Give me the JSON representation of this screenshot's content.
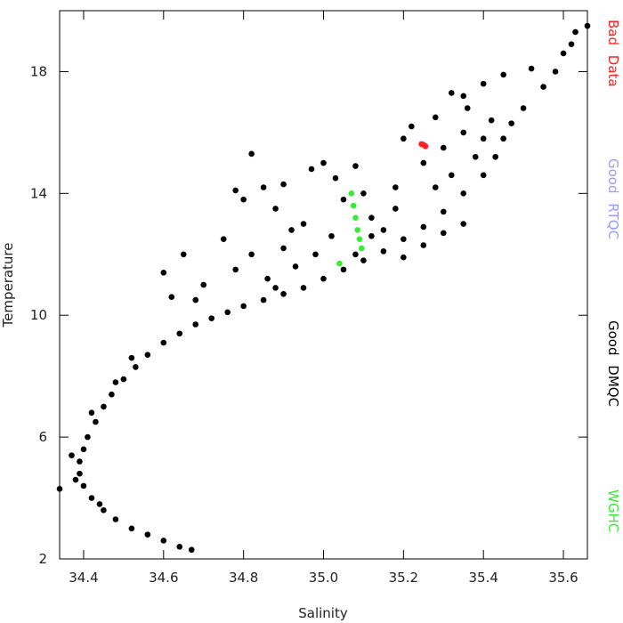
{
  "chart_data": {
    "type": "scatter",
    "x_label": "Salinity",
    "y_label": "Temperature",
    "xlim": [
      34.34,
      35.66
    ],
    "ylim": [
      2,
      20
    ],
    "xticks": [
      34.4,
      34.6,
      34.8,
      {
        "value": 35.0,
        "label": "35.0"
      },
      35.2,
      35.4,
      35.6
    ],
    "yticks": [
      2,
      6,
      10,
      14,
      18
    ],
    "series": [
      {
        "name": "Bad Data",
        "color": "#ff2020",
        "x": [
          35.25,
          35.255,
          35.245
        ],
        "values": [
          15.6,
          15.55,
          15.62
        ]
      },
      {
        "name": "Good RTQC",
        "color": "#9a9aff",
        "x": [],
        "values": []
      },
      {
        "name": "Good DMQC",
        "color": "#000000",
        "x": [
          34.67,
          34.64,
          34.6,
          34.56,
          34.52,
          34.48,
          34.45,
          34.42,
          34.4,
          34.39,
          34.39,
          34.4,
          34.41,
          34.43,
          34.45,
          34.47,
          34.5,
          34.53,
          34.56,
          34.6,
          34.64,
          34.68,
          34.72,
          34.76,
          34.8,
          34.85,
          34.9,
          34.95,
          35.0,
          35.05,
          35.1,
          35.15,
          35.2,
          35.25,
          35.3,
          35.35,
          35.4,
          35.43,
          35.45,
          35.47,
          35.5,
          35.55,
          35.58,
          35.6,
          35.63,
          35.66,
          35.52,
          35.62,
          35.45,
          35.4,
          35.35,
          34.44,
          34.38,
          34.37,
          34.42,
          34.48,
          34.34,
          34.52,
          35.2,
          35.25,
          35.3,
          35.35,
          34.82,
          34.78,
          34.8,
          34.85,
          34.88,
          34.9,
          34.92,
          34.75,
          34.78,
          34.82,
          34.86,
          34.9,
          34.95,
          34.97,
          35.0,
          35.03,
          35.05,
          35.08,
          35.1,
          35.12,
          35.15,
          35.18,
          35.2,
          35.22,
          35.25,
          35.28,
          35.3,
          35.32,
          35.35,
          35.38,
          34.68,
          34.7,
          34.65,
          34.6,
          34.62,
          34.98,
          35.02,
          35.08,
          35.12,
          35.28,
          35.32,
          35.18,
          34.93,
          34.88,
          35.4,
          35.42,
          35.36
        ],
        "values": [
          2.3,
          2.4,
          2.6,
          2.8,
          3.0,
          3.3,
          3.6,
          4.0,
          4.4,
          4.8,
          5.2,
          5.6,
          6.0,
          6.5,
          7.0,
          7.4,
          7.9,
          8.3,
          8.7,
          9.1,
          9.4,
          9.7,
          9.9,
          10.1,
          10.3,
          10.5,
          10.7,
          10.9,
          11.2,
          11.5,
          11.8,
          12.1,
          12.5,
          12.9,
          13.4,
          14.0,
          14.6,
          15.2,
          15.8,
          16.3,
          16.8,
          17.5,
          18.0,
          18.6,
          19.3,
          19.5,
          18.1,
          18.9,
          17.9,
          17.6,
          17.2,
          3.8,
          4.6,
          5.4,
          6.8,
          7.8,
          4.3,
          8.6,
          11.9,
          12.3,
          12.7,
          13.0,
          15.3,
          14.1,
          13.8,
          14.2,
          13.5,
          14.3,
          12.8,
          12.5,
          11.5,
          12.0,
          11.2,
          12.2,
          13.0,
          14.8,
          15.0,
          14.5,
          13.8,
          14.9,
          14.0,
          13.2,
          12.8,
          14.2,
          15.8,
          16.2,
          15.0,
          16.5,
          15.5,
          17.3,
          16.0,
          15.2,
          10.5,
          11.0,
          12.0,
          11.4,
          10.6,
          12.0,
          12.6,
          12.0,
          12.6,
          14.2,
          14.6,
          13.5,
          11.6,
          10.9,
          15.8,
          16.4,
          16.8
        ]
      },
      {
        "name": "WGHC",
        "color": "#33ee33",
        "x": [
          35.07,
          35.075,
          35.08,
          35.085,
          35.09,
          35.095,
          35.04
        ],
        "values": [
          14.0,
          13.6,
          13.2,
          12.8,
          12.5,
          12.2,
          11.7
        ]
      }
    ]
  }
}
